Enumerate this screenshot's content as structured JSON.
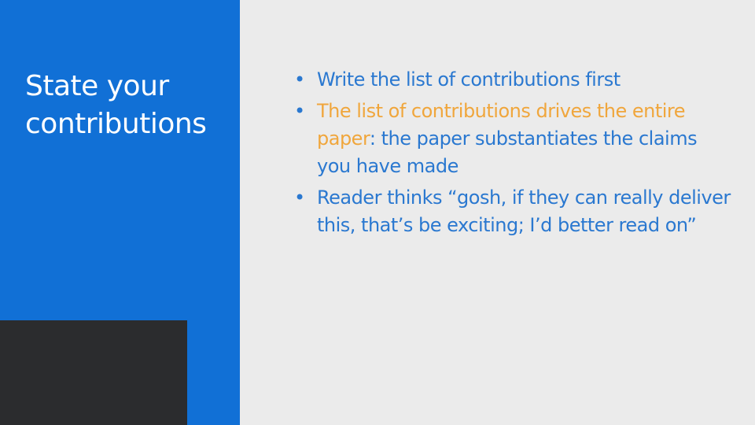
{
  "slide": {
    "title": "State your\ncontributions",
    "bullet_symbol": "•",
    "bullets": [
      {
        "highlight": "",
        "text": "Write the list of contributions first"
      },
      {
        "highlight": "The list of contributions drives the entire paper",
        "text": ": the paper substantiates the claims you have made"
      },
      {
        "highlight": "",
        "text": "Reader thinks “gosh, if they can really deliver this, that’s be exciting; I’d better read on”"
      }
    ]
  },
  "colors": {
    "left_panel": "#1170d6",
    "background": "#ebebeb",
    "dark_block": "#2b2c2e",
    "bullet_text": "#2a78d0",
    "highlight_text": "#f0a63c",
    "title_text": "#ffffff"
  }
}
